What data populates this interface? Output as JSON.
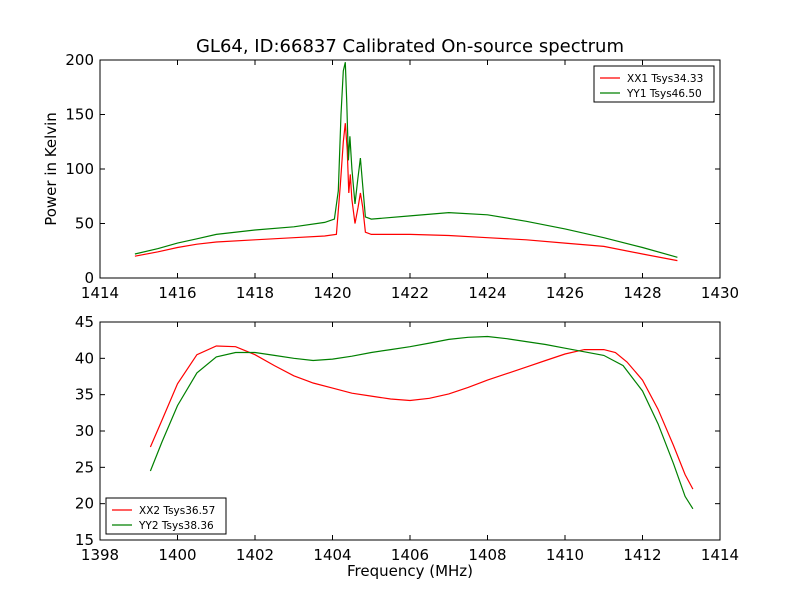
{
  "title": "GL64, ID:66837 Calibrated On-source spectrum",
  "colors": {
    "xx": "#ff0000",
    "yy": "#008000"
  },
  "chart_data": [
    {
      "type": "line",
      "xlabel": "",
      "ylabel": "Power in Kelvin",
      "xlim": [
        1414,
        1430
      ],
      "ylim": [
        0,
        200
      ],
      "xticks": [
        1414,
        1416,
        1418,
        1420,
        1422,
        1424,
        1426,
        1428,
        1430
      ],
      "yticks": [
        0,
        50,
        100,
        150,
        200
      ],
      "grid": false,
      "legend_position": "top-right",
      "series": [
        {
          "name": "XX1 Tsys34.33",
          "color": "#ff0000",
          "points": [
            [
              1414.9,
              20
            ],
            [
              1415.5,
              24
            ],
            [
              1416,
              28
            ],
            [
              1416.5,
              31
            ],
            [
              1417,
              33
            ],
            [
              1418,
              35
            ],
            [
              1419,
              37
            ],
            [
              1419.8,
              38.5
            ],
            [
              1420.1,
              40
            ],
            [
              1420.2,
              85
            ],
            [
              1420.28,
              125
            ],
            [
              1420.33,
              142
            ],
            [
              1420.38,
              118
            ],
            [
              1420.42,
              78
            ],
            [
              1420.46,
              95
            ],
            [
              1420.5,
              72
            ],
            [
              1420.58,
              50
            ],
            [
              1420.66,
              65
            ],
            [
              1420.72,
              78
            ],
            [
              1420.78,
              65
            ],
            [
              1420.85,
              42
            ],
            [
              1421,
              40
            ],
            [
              1422,
              40
            ],
            [
              1423,
              39
            ],
            [
              1424,
              37
            ],
            [
              1425,
              35
            ],
            [
              1426,
              32
            ],
            [
              1427,
              29
            ],
            [
              1428,
              22
            ],
            [
              1428.9,
              16
            ]
          ]
        },
        {
          "name": "YY1 Tsys46.50",
          "color": "#008000",
          "points": [
            [
              1414.9,
              22
            ],
            [
              1415.5,
              27
            ],
            [
              1416,
              32
            ],
            [
              1416.5,
              36
            ],
            [
              1417,
              40
            ],
            [
              1418,
              44
            ],
            [
              1419,
              47
            ],
            [
              1419.8,
              51
            ],
            [
              1420.05,
              54
            ],
            [
              1420.15,
              80
            ],
            [
              1420.22,
              150
            ],
            [
              1420.28,
              190
            ],
            [
              1420.33,
              198
            ],
            [
              1420.37,
              160
            ],
            [
              1420.41,
              108
            ],
            [
              1420.45,
              130
            ],
            [
              1420.5,
              100
            ],
            [
              1420.58,
              68
            ],
            [
              1420.65,
              90
            ],
            [
              1420.72,
              110
            ],
            [
              1420.78,
              85
            ],
            [
              1420.85,
              56
            ],
            [
              1421,
              54
            ],
            [
              1422,
              57
            ],
            [
              1423,
              60
            ],
            [
              1424,
              58
            ],
            [
              1425,
              52
            ],
            [
              1426,
              45
            ],
            [
              1427,
              37
            ],
            [
              1428,
              28
            ],
            [
              1428.9,
              19
            ]
          ]
        }
      ]
    },
    {
      "type": "line",
      "xlabel": "Frequency (MHz)",
      "ylabel": "",
      "xlim": [
        1398,
        1414
      ],
      "ylim": [
        15,
        45
      ],
      "xticks": [
        1398,
        1400,
        1402,
        1404,
        1406,
        1408,
        1410,
        1412,
        1414
      ],
      "yticks": [
        15,
        20,
        25,
        30,
        35,
        40,
        45
      ],
      "grid": false,
      "legend_position": "bottom-left",
      "series": [
        {
          "name": "XX2 Tsys36.57",
          "color": "#ff0000",
          "points": [
            [
              1399.3,
              27.8
            ],
            [
              1399.6,
              31.5
            ],
            [
              1400,
              36.5
            ],
            [
              1400.5,
              40.5
            ],
            [
              1401,
              41.7
            ],
            [
              1401.5,
              41.6
            ],
            [
              1402,
              40.5
            ],
            [
              1402.5,
              39
            ],
            [
              1403,
              37.6
            ],
            [
              1403.5,
              36.6
            ],
            [
              1404,
              35.9
            ],
            [
              1404.5,
              35.2
            ],
            [
              1405,
              34.8
            ],
            [
              1405.5,
              34.4
            ],
            [
              1406,
              34.2
            ],
            [
              1406.5,
              34.5
            ],
            [
              1407,
              35.1
            ],
            [
              1407.5,
              36
            ],
            [
              1408,
              37
            ],
            [
              1408.5,
              37.9
            ],
            [
              1409,
              38.8
            ],
            [
              1409.5,
              39.7
            ],
            [
              1410,
              40.6
            ],
            [
              1410.5,
              41.2
            ],
            [
              1411,
              41.2
            ],
            [
              1411.3,
              40.8
            ],
            [
              1411.6,
              39.5
            ],
            [
              1412,
              37
            ],
            [
              1412.4,
              33
            ],
            [
              1412.8,
              28
            ],
            [
              1413.1,
              24
            ],
            [
              1413.3,
              22
            ]
          ]
        },
        {
          "name": "YY2 Tsys38.36",
          "color": "#008000",
          "points": [
            [
              1399.3,
              24.5
            ],
            [
              1399.6,
              28.5
            ],
            [
              1400,
              33.5
            ],
            [
              1400.5,
              38
            ],
            [
              1401,
              40.2
            ],
            [
              1401.5,
              40.8
            ],
            [
              1402,
              40.8
            ],
            [
              1402.5,
              40.4
            ],
            [
              1403,
              40
            ],
            [
              1403.5,
              39.7
            ],
            [
              1404,
              39.9
            ],
            [
              1404.5,
              40.3
            ],
            [
              1405,
              40.8
            ],
            [
              1405.5,
              41.2
            ],
            [
              1406,
              41.6
            ],
            [
              1406.5,
              42.1
            ],
            [
              1407,
              42.6
            ],
            [
              1407.5,
              42.9
            ],
            [
              1408,
              43
            ],
            [
              1408.5,
              42.7
            ],
            [
              1409,
              42.3
            ],
            [
              1409.5,
              41.9
            ],
            [
              1410,
              41.4
            ],
            [
              1410.5,
              40.9
            ],
            [
              1411,
              40.4
            ],
            [
              1411.5,
              39
            ],
            [
              1412,
              35.5
            ],
            [
              1412.4,
              31
            ],
            [
              1412.8,
              25.5
            ],
            [
              1413.1,
              21
            ],
            [
              1413.3,
              19.3
            ]
          ]
        }
      ]
    }
  ]
}
